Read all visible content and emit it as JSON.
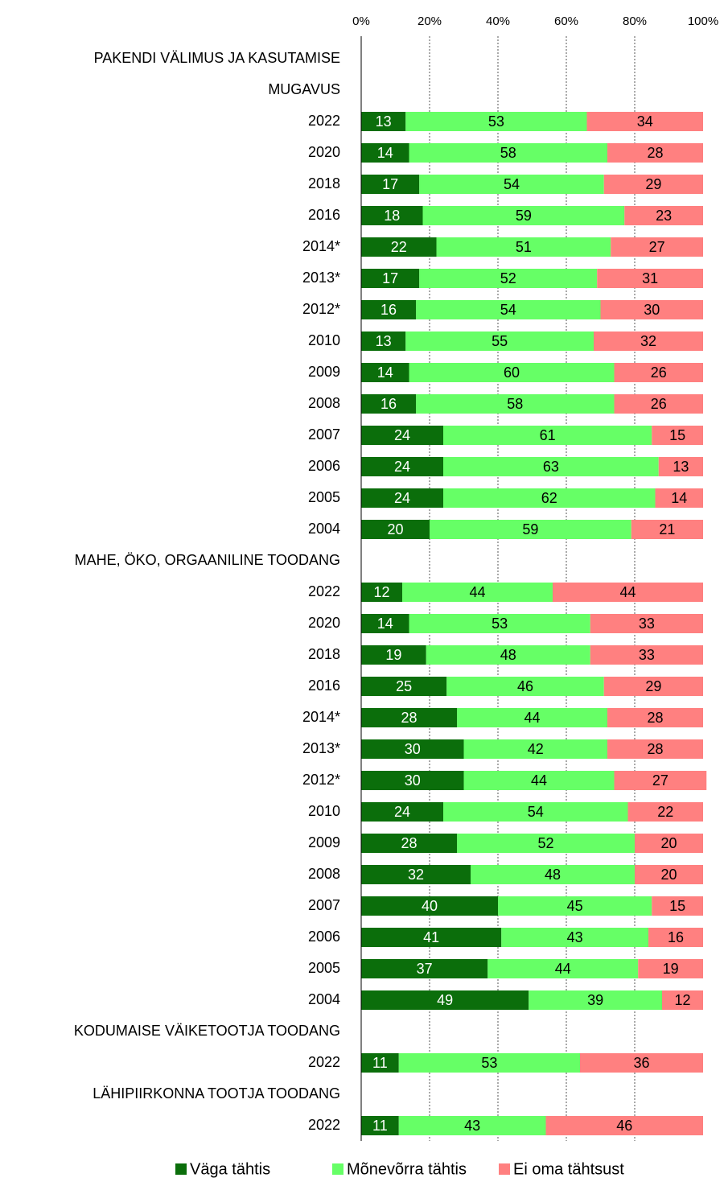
{
  "chart_data": {
    "type": "stacked-bar-horizontal",
    "categories": [
      "PAKENDI VÄLIMUS JA KASUTAMISE",
      "MUGAVUS",
      "2022",
      "2020",
      "2018",
      "2016",
      "2014*",
      "2013*",
      "2012*",
      "2010",
      "2009",
      "2008",
      "2007",
      "2006",
      "2005",
      "2004",
      "MAHE, ÖKO, ORGAANILINE TOODANG",
      "2022",
      "2020",
      "2018",
      "2016",
      "2014*",
      "2013*",
      "2012*",
      "2010",
      "2009",
      "2008",
      "2007",
      "2006",
      "2005",
      "2004",
      "KODUMAISE VÄIKETOOTJA TOODANG",
      "2022",
      "LÄHIPIIRKONNA TOOTJA TOODANG",
      "2022"
    ],
    "series": [
      {
        "name": "Väga tähtis",
        "color": "#0b6e0b",
        "values": [
          null,
          null,
          13,
          14,
          17,
          18,
          22,
          17,
          16,
          13,
          14,
          16,
          24,
          24,
          24,
          20,
          null,
          12,
          14,
          19,
          25,
          28,
          30,
          30,
          24,
          28,
          32,
          40,
          41,
          37,
          49,
          null,
          11,
          null,
          11
        ]
      },
      {
        "name": "Mõnevõrra tähtis",
        "color": "#66ff66",
        "values": [
          null,
          null,
          53,
          58,
          54,
          59,
          51,
          52,
          54,
          55,
          60,
          58,
          61,
          63,
          62,
          59,
          null,
          44,
          53,
          48,
          46,
          44,
          42,
          44,
          54,
          52,
          48,
          45,
          43,
          44,
          39,
          null,
          53,
          null,
          43
        ]
      },
      {
        "name": "Ei oma tähtsust",
        "color": "#ff8080",
        "values": [
          null,
          null,
          34,
          28,
          29,
          23,
          27,
          31,
          30,
          32,
          26,
          26,
          15,
          13,
          14,
          21,
          null,
          44,
          33,
          33,
          29,
          28,
          28,
          27,
          22,
          20,
          20,
          15,
          16,
          19,
          12,
          null,
          36,
          null,
          46
        ]
      }
    ],
    "xlim": [
      0,
      100
    ],
    "xticks": [
      {
        "value": 0,
        "label": "0%"
      },
      {
        "value": 20,
        "label": "20%"
      },
      {
        "value": 40,
        "label": "40%"
      },
      {
        "value": 60,
        "label": "60%"
      },
      {
        "value": 80,
        "label": "80%"
      },
      {
        "value": 100,
        "label": "100%"
      }
    ],
    "grid": true,
    "legend": "bottom"
  }
}
